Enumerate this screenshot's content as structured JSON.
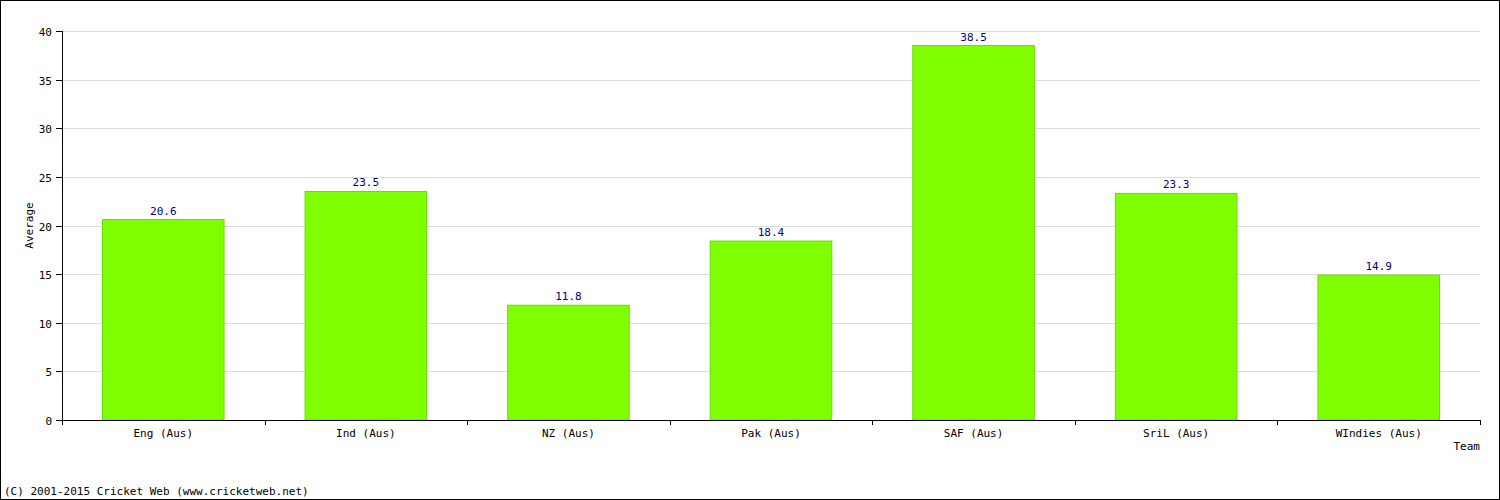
{
  "chart_data": {
    "type": "bar",
    "x_label": "Team",
    "y_label": "Average",
    "annotations": [
      "(C) 2001-2015 Cricket Web (www.cricketweb.net)"
    ],
    "categories": [
      "Eng (Aus)",
      "Ind (Aus)",
      "NZ (Aus)",
      "Pak (Aus)",
      "SAF (Aus)",
      "SriL (Aus)",
      "WIndies (Aus)"
    ],
    "values": [
      20.6,
      23.5,
      11.8,
      18.4,
      38.5,
      23.3,
      14.9
    ],
    "color": "#80ff00",
    "ylim": [
      0,
      40
    ],
    "yticks": [
      0,
      5,
      10,
      15,
      20,
      25,
      30,
      35,
      40
    ],
    "grid": true,
    "data_labels": true
  }
}
